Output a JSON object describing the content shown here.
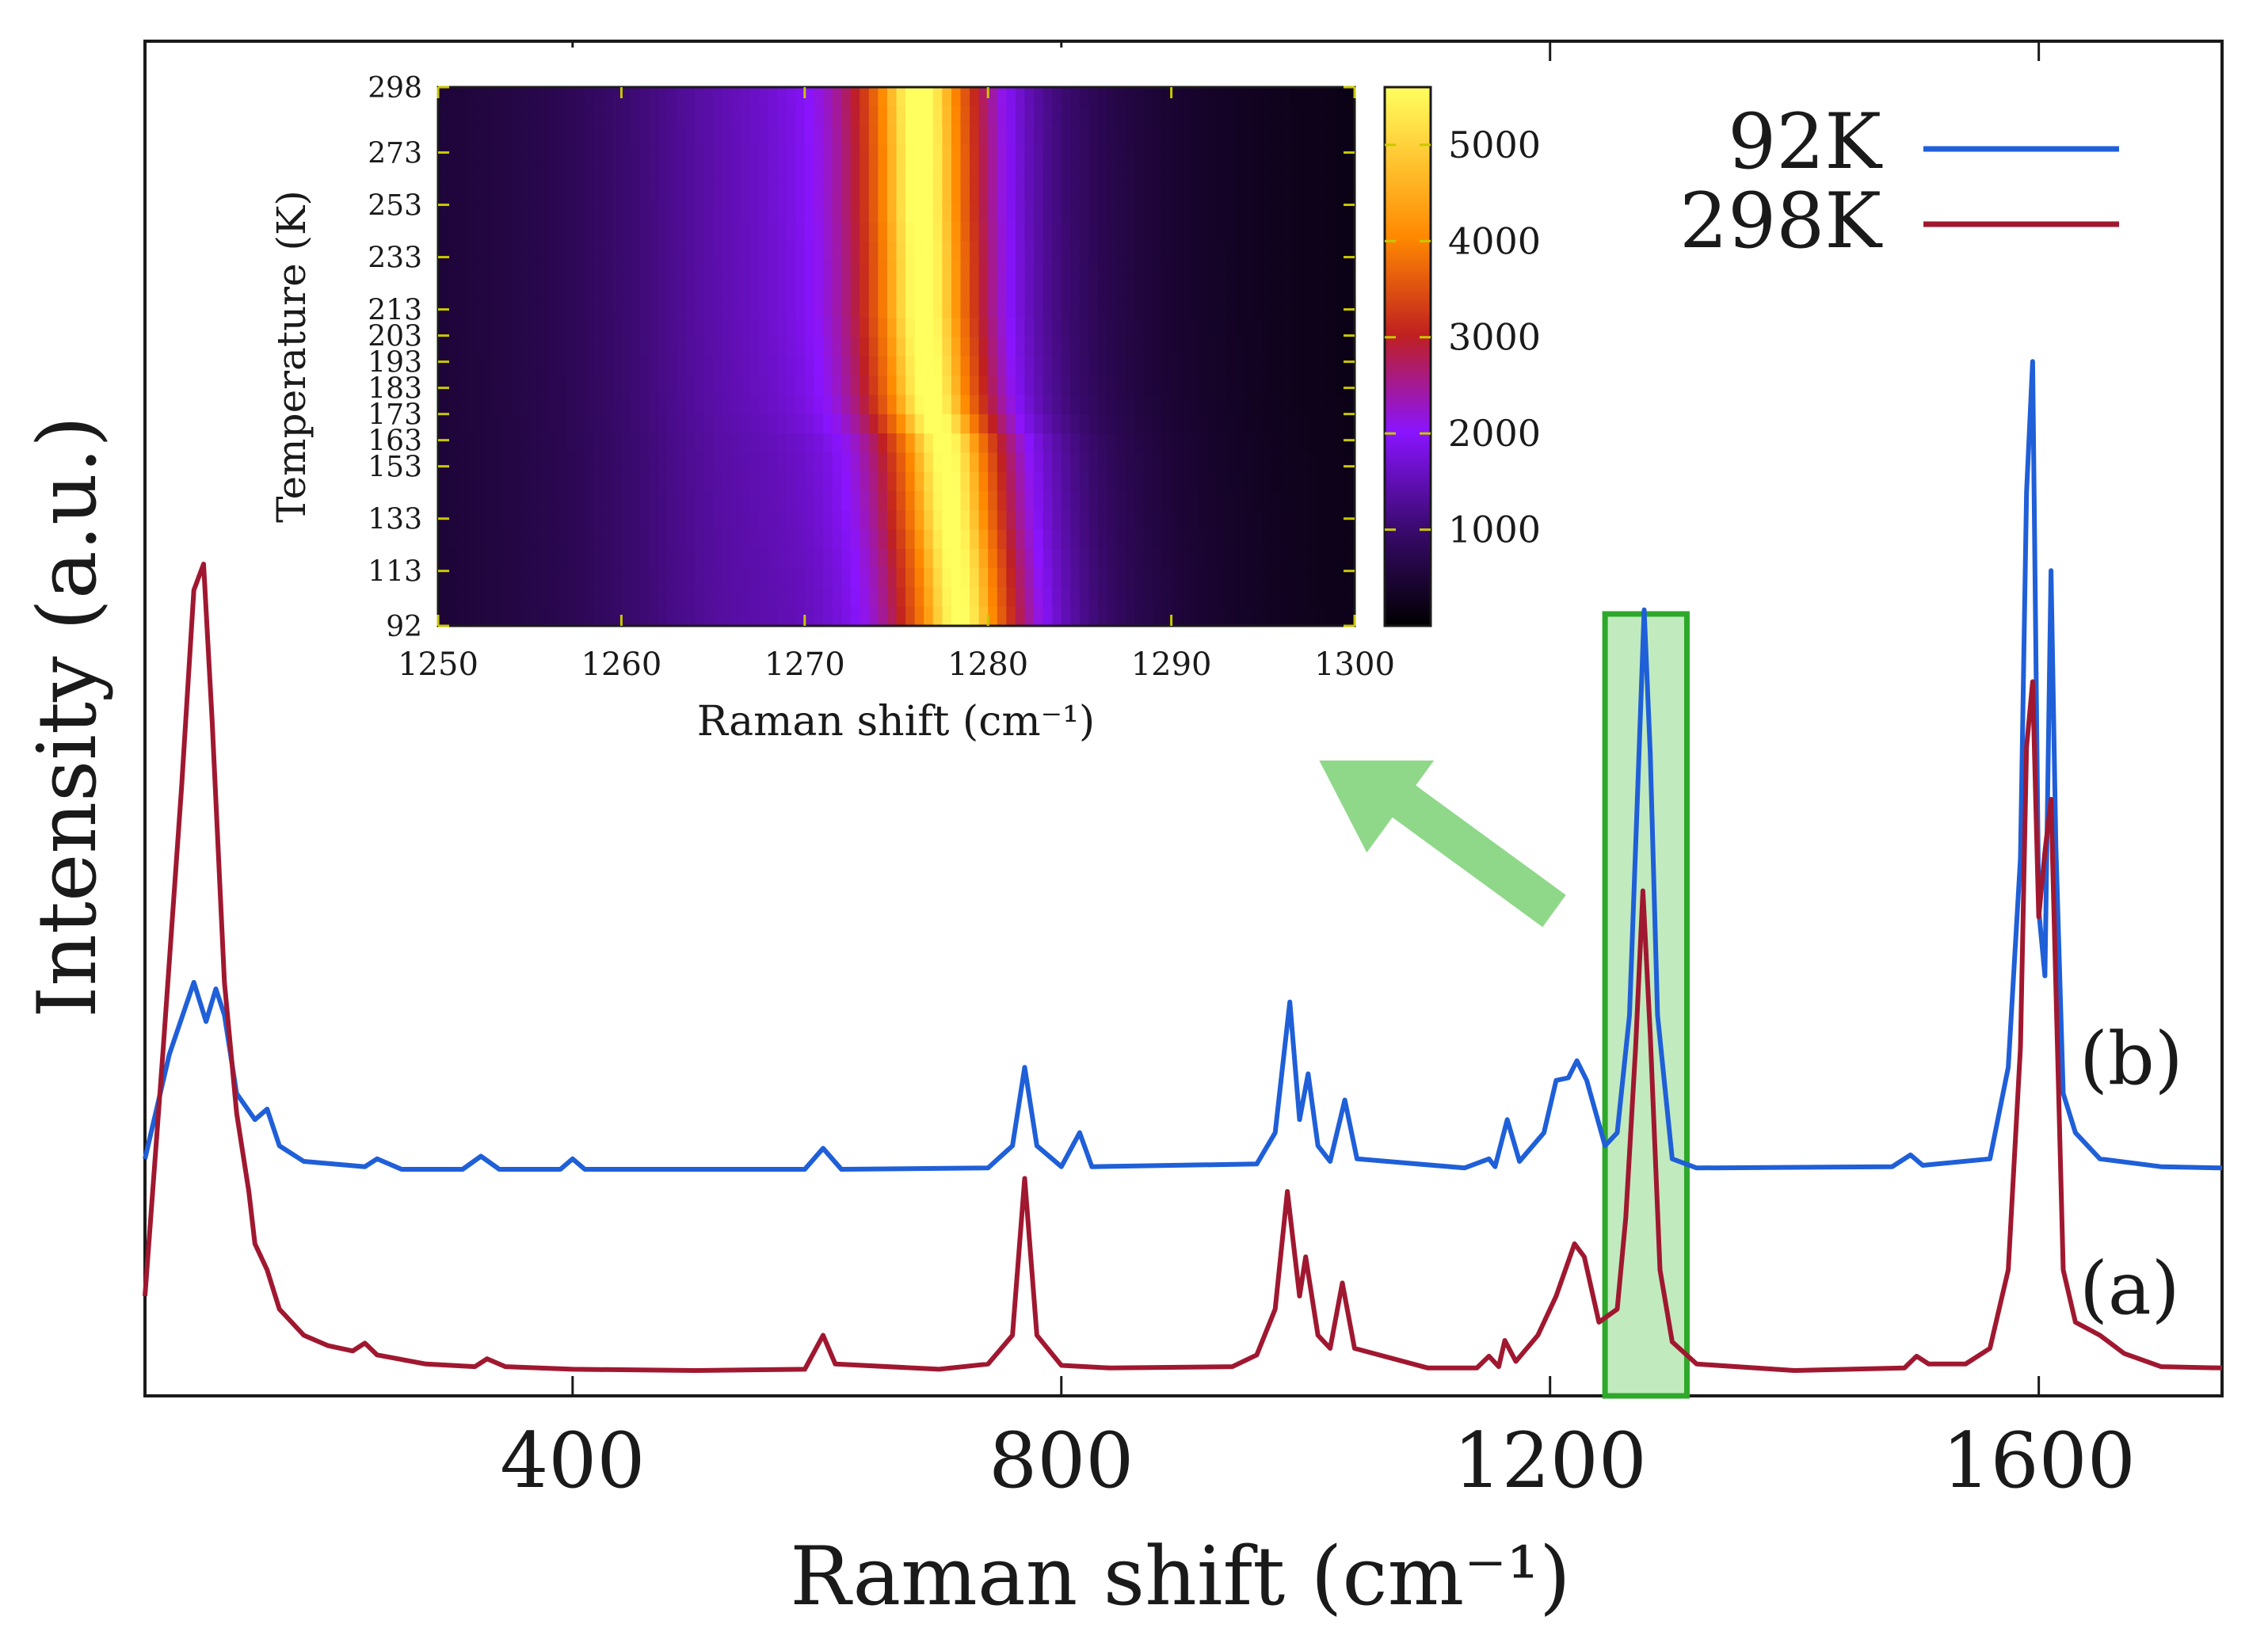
{
  "chart_data": [
    {
      "type": "line",
      "xlabel": "Raman shift (cm⁻¹)",
      "ylabel": "Intensity (a.u.)",
      "xlim": [
        50,
        1750
      ],
      "xticks": [
        400,
        800,
        1200,
        1600
      ],
      "yticks": "none",
      "legend_position": "top-right",
      "curve_labels": [
        "(b)",
        "(a)"
      ],
      "series": [
        {
          "name": "92K",
          "color": "#1f5fd8",
          "offset": 0.155,
          "points": [
            [
              50,
              0.01
            ],
            [
              70,
              0.09
            ],
            [
              90,
              0.145
            ],
            [
              100,
              0.115
            ],
            [
              108,
              0.14
            ],
            [
              115,
              0.12
            ],
            [
              125,
              0.06
            ],
            [
              140,
              0.04
            ],
            [
              150,
              0.048
            ],
            [
              160,
              0.02
            ],
            [
              180,
              0.008
            ],
            [
              230,
              0.004
            ],
            [
              240,
              0.01
            ],
            [
              260,
              0.002
            ],
            [
              310,
              0.002
            ],
            [
              325,
              0.012
            ],
            [
              340,
              0.002
            ],
            [
              390,
              0.002
            ],
            [
              400,
              0.01
            ],
            [
              410,
              0.002
            ],
            [
              590,
              0.002
            ],
            [
              605,
              0.018
            ],
            [
              620,
              0.002
            ],
            [
              740,
              0.003
            ],
            [
              760,
              0.02
            ],
            [
              770,
              0.08
            ],
            [
              780,
              0.02
            ],
            [
              800,
              0.004
            ],
            [
              815,
              0.03
            ],
            [
              825,
              0.004
            ],
            [
              960,
              0.006
            ],
            [
              975,
              0.03
            ],
            [
              987,
              0.13
            ],
            [
              995,
              0.04
            ],
            [
              1002,
              0.075
            ],
            [
              1010,
              0.02
            ],
            [
              1020,
              0.008
            ],
            [
              1032,
              0.055
            ],
            [
              1042,
              0.01
            ],
            [
              1130,
              0.003
            ],
            [
              1150,
              0.01
            ],
            [
              1155,
              0.004
            ],
            [
              1165,
              0.04
            ],
            [
              1175,
              0.008
            ],
            [
              1195,
              0.03
            ],
            [
              1205,
              0.07
            ],
            [
              1215,
              0.072
            ],
            [
              1222,
              0.085
            ],
            [
              1230,
              0.07
            ],
            [
              1245,
              0.02
            ],
            [
              1255,
              0.03
            ],
            [
              1265,
              0.12
            ],
            [
              1272,
              0.3
            ],
            [
              1277,
              0.43
            ],
            [
              1282,
              0.32
            ],
            [
              1288,
              0.12
            ],
            [
              1300,
              0.01
            ],
            [
              1320,
              0.003
            ],
            [
              1480,
              0.004
            ],
            [
              1495,
              0.013
            ],
            [
              1505,
              0.005
            ],
            [
              1560,
              0.01
            ],
            [
              1575,
              0.08
            ],
            [
              1585,
              0.24
            ],
            [
              1590,
              0.52
            ],
            [
              1595,
              0.62
            ],
            [
              1600,
              0.2
            ],
            [
              1605,
              0.15
            ],
            [
              1610,
              0.46
            ],
            [
              1614,
              0.25
            ],
            [
              1620,
              0.06
            ],
            [
              1630,
              0.03
            ],
            [
              1650,
              0.01
            ],
            [
              1700,
              0.004
            ],
            [
              1750,
              0.003
            ]
          ]
        },
        {
          "name": "298K",
          "color": "#a01830",
          "offset": 0.0,
          "points": [
            [
              50,
              0.06
            ],
            [
              65,
              0.25
            ],
            [
              80,
              0.45
            ],
            [
              90,
              0.6
            ],
            [
              98,
              0.62
            ],
            [
              105,
              0.5
            ],
            [
              115,
              0.3
            ],
            [
              125,
              0.2
            ],
            [
              135,
              0.14
            ],
            [
              140,
              0.1
            ],
            [
              150,
              0.08
            ],
            [
              160,
              0.05
            ],
            [
              180,
              0.03
            ],
            [
              200,
              0.022
            ],
            [
              220,
              0.018
            ],
            [
              230,
              0.024
            ],
            [
              240,
              0.015
            ],
            [
              280,
              0.008
            ],
            [
              320,
              0.006
            ],
            [
              330,
              0.012
            ],
            [
              345,
              0.006
            ],
            [
              400,
              0.004
            ],
            [
              500,
              0.003
            ],
            [
              590,
              0.004
            ],
            [
              605,
              0.03
            ],
            [
              615,
              0.008
            ],
            [
              700,
              0.004
            ],
            [
              740,
              0.008
            ],
            [
              760,
              0.03
            ],
            [
              770,
              0.15
            ],
            [
              780,
              0.03
            ],
            [
              800,
              0.007
            ],
            [
              840,
              0.005
            ],
            [
              940,
              0.006
            ],
            [
              960,
              0.015
            ],
            [
              975,
              0.05
            ],
            [
              985,
              0.14
            ],
            [
              995,
              0.06
            ],
            [
              1000,
              0.09
            ],
            [
              1010,
              0.03
            ],
            [
              1020,
              0.02
            ],
            [
              1030,
              0.07
            ],
            [
              1040,
              0.02
            ],
            [
              1100,
              0.005
            ],
            [
              1140,
              0.005
            ],
            [
              1150,
              0.014
            ],
            [
              1158,
              0.006
            ],
            [
              1163,
              0.026
            ],
            [
              1172,
              0.01
            ],
            [
              1190,
              0.03
            ],
            [
              1205,
              0.06
            ],
            [
              1220,
              0.1
            ],
            [
              1228,
              0.09
            ],
            [
              1240,
              0.04
            ],
            [
              1255,
              0.05
            ],
            [
              1262,
              0.12
            ],
            [
              1270,
              0.25
            ],
            [
              1276,
              0.37
            ],
            [
              1282,
              0.26
            ],
            [
              1290,
              0.08
            ],
            [
              1300,
              0.025
            ],
            [
              1320,
              0.008
            ],
            [
              1400,
              0.003
            ],
            [
              1490,
              0.005
            ],
            [
              1500,
              0.014
            ],
            [
              1510,
              0.008
            ],
            [
              1540,
              0.008
            ],
            [
              1560,
              0.02
            ],
            [
              1575,
              0.08
            ],
            [
              1585,
              0.25
            ],
            [
              1590,
              0.48
            ],
            [
              1595,
              0.53
            ],
            [
              1600,
              0.35
            ],
            [
              1605,
              0.4
            ],
            [
              1610,
              0.44
            ],
            [
              1620,
              0.08
            ],
            [
              1630,
              0.04
            ],
            [
              1650,
              0.03
            ],
            [
              1670,
              0.016
            ],
            [
              1700,
              0.006
            ],
            [
              1750,
              0.005
            ]
          ]
        }
      ],
      "highlight_region": [
        1245,
        1312
      ]
    },
    {
      "type": "heatmap",
      "xlabel": "Raman shift (cm⁻¹)",
      "ylabel": "Temperature (K)",
      "xlim": [
        1250,
        1300
      ],
      "xticks": [
        1250,
        1260,
        1270,
        1280,
        1290,
        1300
      ],
      "y_categories": [
        92,
        113,
        133,
        153,
        163,
        173,
        183,
        193,
        203,
        213,
        233,
        253,
        273,
        298
      ],
      "colorbar": {
        "range": [
          0,
          5600
        ],
        "ticks": [
          1000,
          2000,
          3000,
          4000,
          5000
        ],
        "colormap": [
          "#000000",
          "#3a0a6e",
          "#8a14ff",
          "#c02020",
          "#ff8800",
          "#ffff60"
        ]
      },
      "peak_centers": [
        [
          92,
          1278.5
        ],
        [
          113,
          1278.3
        ],
        [
          133,
          1278.0
        ],
        [
          153,
          1277.8
        ],
        [
          163,
          1277.6
        ],
        [
          173,
          1277.0
        ],
        [
          183,
          1276.8
        ],
        [
          193,
          1276.7
        ],
        [
          203,
          1276.6
        ],
        [
          213,
          1276.5
        ],
        [
          233,
          1276.5
        ],
        [
          253,
          1276.4
        ],
        [
          273,
          1276.4
        ],
        [
          298,
          1276.3
        ]
      ],
      "peak_width": 3.5,
      "peak_max": 5200,
      "background_level": 1000
    }
  ]
}
